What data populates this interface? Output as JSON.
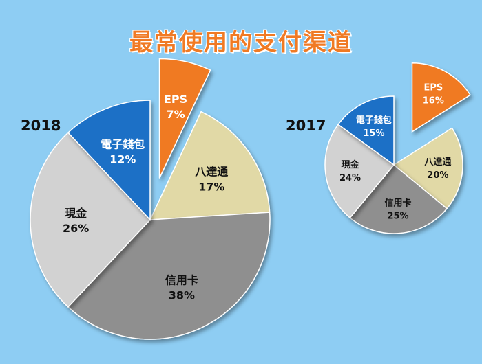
{
  "title": "最常使用的支付渠道",
  "colors": {
    "background": "#8ecdf3",
    "title": "#f07a24",
    "eps": "#f07a24",
    "ewallet": "#1b70c6",
    "octopus": "#e1d9a6",
    "credit_card": "#8f8f8f",
    "cash": "#d2d2d2"
  },
  "chart_data": [
    {
      "type": "pie",
      "year_label": "2018",
      "slices": [
        {
          "label": "EPS",
          "value": 7,
          "value_label": "7%",
          "color": "#f07a24",
          "exploded": true
        },
        {
          "label": "八達通",
          "value": 17,
          "value_label": "17%",
          "color": "#e1d9a6",
          "exploded": false
        },
        {
          "label": "信用卡",
          "value": 38,
          "value_label": "38%",
          "color": "#8f8f8f",
          "exploded": false
        },
        {
          "label": "現金",
          "value": 26,
          "value_label": "26%",
          "color": "#d2d2d2",
          "exploded": false
        },
        {
          "label": "電子錢包",
          "value": 12,
          "value_label": "12%",
          "color": "#1b70c6",
          "exploded": false
        }
      ]
    },
    {
      "type": "pie",
      "year_label": "2017",
      "slices": [
        {
          "label": "EPS",
          "value": 16,
          "value_label": "16%",
          "color": "#f07a24",
          "exploded": true
        },
        {
          "label": "八達通",
          "value": 20,
          "value_label": "20%",
          "color": "#e1d9a6",
          "exploded": false
        },
        {
          "label": "信用卡",
          "value": 25,
          "value_label": "25%",
          "color": "#8f8f8f",
          "exploded": false
        },
        {
          "label": "現金",
          "value": 24,
          "value_label": "24%",
          "color": "#d2d2d2",
          "exploded": false
        },
        {
          "label": "電子錢包",
          "value": 15,
          "value_label": "15%",
          "color": "#1b70c6",
          "exploded": false
        }
      ]
    }
  ]
}
